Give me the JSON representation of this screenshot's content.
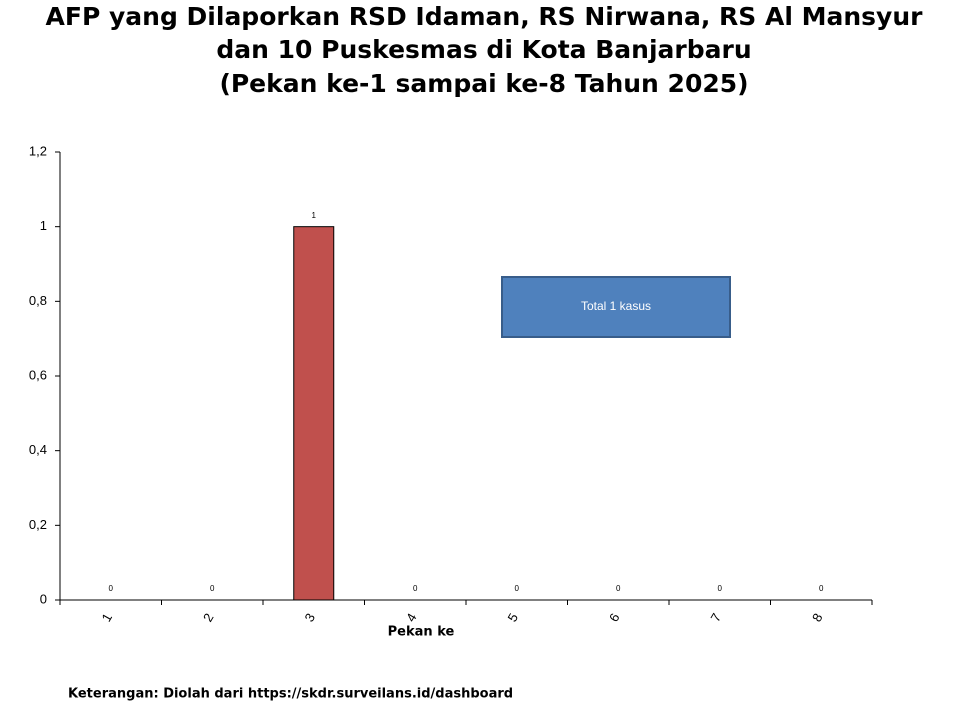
{
  "chart_data": {
    "type": "bar",
    "title": [
      "AFP yang Dilaporkan RSD Idaman, RS Nirwana, RS Al Mansyur",
      "dan 10 Puskesmas di Kota Banjarbaru",
      "(Pekan ke-1 sampai ke-8 Tahun 2025)"
    ],
    "x_label": "Pekan ke",
    "categories": [
      "1",
      "2",
      "3",
      "4",
      "5",
      "6",
      "7",
      "8"
    ],
    "values": [
      0,
      0,
      1,
      0,
      0,
      0,
      0,
      0
    ],
    "color": "#c0504d",
    "ylim": [
      0,
      1.2
    ],
    "yticks": [
      0,
      {
        "value": 0.2,
        "label": "0,2"
      },
      {
        "value": 0.4,
        "label": "0,4"
      },
      {
        "value": 0.6,
        "label": "0,6"
      },
      {
        "value": 0.8,
        "label": "0,8"
      },
      1,
      {
        "value": 1.2,
        "label": "1,2"
      }
    ],
    "annotation": "Total 1 kasus",
    "footnote": "Keterangan: Diolah dari https://skdr.surveilans.id/dashboard"
  }
}
